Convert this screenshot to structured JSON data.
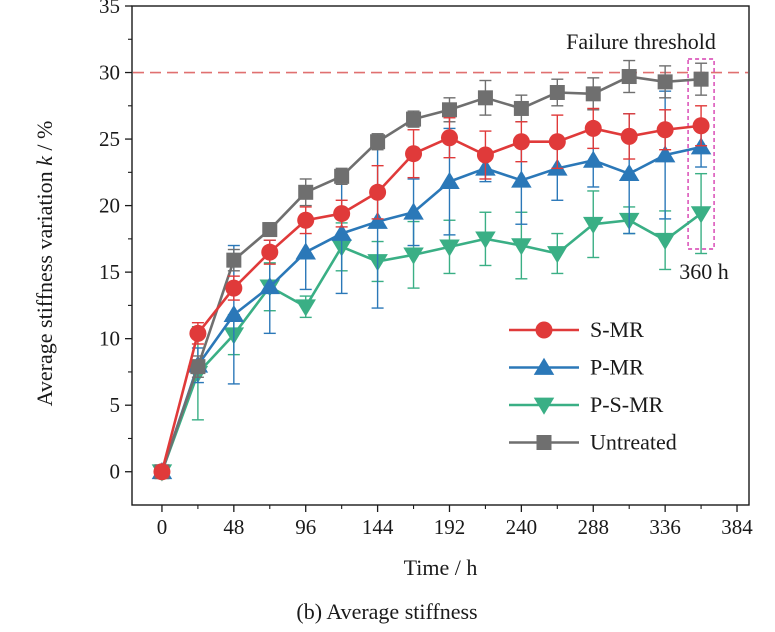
{
  "chart_data": {
    "type": "line",
    "caption": "(b) Average stiffness",
    "xlabel": "Time / h",
    "ylabel_prefix": "Average stiffness variation ",
    "ylabel_var": "k",
    "ylabel_suffix": " / %",
    "xlim": [
      -20,
      392
    ],
    "ylim": [
      -2.5,
      35
    ],
    "xticks": [
      0,
      48,
      96,
      144,
      192,
      240,
      288,
      336,
      384
    ],
    "yticks": [
      0,
      5,
      10,
      15,
      20,
      25,
      30,
      35
    ],
    "x": [
      0,
      24,
      48,
      72,
      96,
      120,
      144,
      168,
      192,
      216,
      240,
      264,
      288,
      312,
      336,
      360
    ],
    "threshold": {
      "value": 30,
      "label": "Failure threshold",
      "color": "#e07070"
    },
    "highlight": {
      "x": 360,
      "label": "360 h",
      "color": "#d63fb0"
    },
    "legend_position": "lower-right",
    "series": [
      {
        "name": "S-MR",
        "marker": "circle",
        "color": "#e03a3a",
        "values": [
          0,
          10.4,
          13.8,
          16.5,
          18.9,
          19.4,
          21.0,
          23.9,
          25.1,
          23.8,
          24.8,
          24.8,
          25.8,
          25.2,
          25.7,
          26.0
        ],
        "errors": [
          0.2,
          0.8,
          0.9,
          0.9,
          1.0,
          1.0,
          2.0,
          1.8,
          1.5,
          1.8,
          1.5,
          2.0,
          1.5,
          1.7,
          1.5,
          1.5
        ]
      },
      {
        "name": "P-MR",
        "marker": "triangle-up",
        "color": "#2b78b8",
        "values": [
          0,
          8.0,
          11.8,
          13.9,
          16.5,
          17.9,
          18.8,
          19.5,
          21.8,
          22.8,
          21.9,
          22.8,
          23.4,
          22.4,
          23.8,
          24.4
        ],
        "errors": [
          0.2,
          1.3,
          5.2,
          3.5,
          2.8,
          4.5,
          6.5,
          2.5,
          4.0,
          1.0,
          3.3,
          2.4,
          2.0,
          4.5,
          4.8,
          1.5
        ]
      },
      {
        "name": "P-S-MR",
        "marker": "triangle-down",
        "color": "#3aaf85",
        "values": [
          0,
          7.4,
          10.3,
          13.9,
          12.4,
          16.9,
          15.8,
          16.3,
          16.9,
          17.5,
          17.0,
          16.4,
          18.6,
          18.9,
          17.4,
          19.4
        ],
        "errors": [
          0.2,
          3.5,
          1.5,
          1.8,
          0.8,
          1.8,
          1.5,
          2.5,
          2.0,
          2.0,
          2.5,
          1.5,
          2.5,
          1.0,
          2.2,
          3.0
        ]
      },
      {
        "name": "Untreated",
        "marker": "square",
        "color": "#6f6f6f",
        "values": [
          0,
          7.9,
          15.9,
          18.2,
          21.0,
          22.2,
          24.8,
          26.5,
          27.2,
          28.1,
          27.3,
          28.5,
          28.4,
          29.7,
          29.3,
          29.5
        ],
        "errors": [
          0.2,
          0.8,
          0.8,
          0.5,
          1.0,
          0.6,
          0.6,
          0.6,
          0.9,
          1.3,
          1.0,
          1.0,
          1.2,
          1.2,
          1.2,
          1.2
        ]
      }
    ]
  }
}
